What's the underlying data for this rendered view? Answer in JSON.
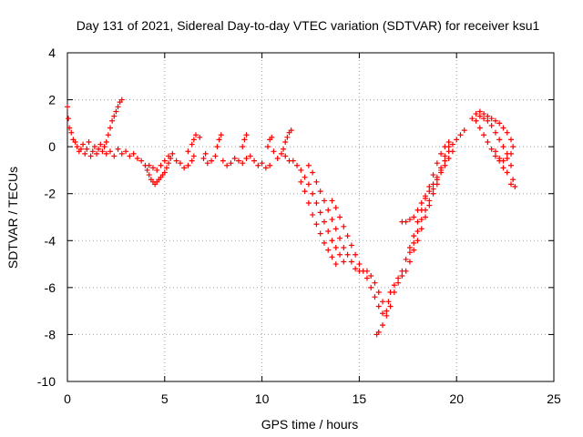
{
  "chart_data": {
    "type": "scatter",
    "title": "Day 131 of 2021, Sidereal Day-to-day VTEC variation (SDTVAR) for receiver ksu1",
    "xlabel": "GPS time / hours",
    "ylabel": "SDTVAR / TECUs",
    "xlim": [
      0,
      25
    ],
    "ylim": [
      -10,
      4
    ],
    "xticks": [
      0,
      5,
      10,
      15,
      20,
      25
    ],
    "yticks": [
      -10,
      -8,
      -6,
      -4,
      -2,
      0,
      2,
      4
    ],
    "xtick_labels": [
      "0",
      "5",
      "10",
      "15",
      "20",
      "25"
    ],
    "ytick_labels": [
      "-10",
      "-8",
      "-6",
      "-4",
      "-2",
      "0",
      "2",
      "4"
    ],
    "grid": true,
    "marker": "+",
    "series": [
      {
        "name": "SDTVAR",
        "color": "#ff0000",
        "points": [
          [
            0.0,
            1.7
          ],
          [
            0.05,
            1.2
          ],
          [
            0.1,
            0.8
          ],
          [
            0.2,
            0.6
          ],
          [
            0.3,
            0.3
          ],
          [
            0.4,
            0.2
          ],
          [
            0.5,
            0.0
          ],
          [
            0.6,
            -0.2
          ],
          [
            0.7,
            -0.1
          ],
          [
            0.8,
            0.1
          ],
          [
            0.9,
            -0.3
          ],
          [
            1.0,
            -0.1
          ],
          [
            1.1,
            0.2
          ],
          [
            1.2,
            -0.4
          ],
          [
            1.3,
            -0.2
          ],
          [
            1.4,
            0.0
          ],
          [
            1.5,
            -0.3
          ],
          [
            1.6,
            -0.1
          ],
          [
            1.7,
            0.1
          ],
          [
            1.8,
            -0.2
          ],
          [
            1.9,
            0.0
          ],
          [
            2.0,
            0.2
          ],
          [
            2.1,
            0.5
          ],
          [
            2.2,
            0.8
          ],
          [
            2.3,
            1.1
          ],
          [
            2.4,
            1.3
          ],
          [
            2.5,
            1.5
          ],
          [
            2.6,
            1.7
          ],
          [
            2.7,
            1.9
          ],
          [
            2.8,
            2.0
          ],
          [
            2.0,
            -0.3
          ],
          [
            2.2,
            -0.2
          ],
          [
            2.4,
            -0.4
          ],
          [
            2.6,
            -0.1
          ],
          [
            2.8,
            -0.3
          ],
          [
            3.0,
            -0.2
          ],
          [
            3.2,
            -0.4
          ],
          [
            3.4,
            -0.3
          ],
          [
            3.6,
            -0.5
          ],
          [
            3.8,
            -0.6
          ],
          [
            4.0,
            -0.8
          ],
          [
            4.1,
            -1.0
          ],
          [
            4.2,
            -1.2
          ],
          [
            4.3,
            -1.4
          ],
          [
            4.4,
            -1.5
          ],
          [
            4.5,
            -1.6
          ],
          [
            4.6,
            -1.5
          ],
          [
            4.7,
            -1.4
          ],
          [
            4.8,
            -1.3
          ],
          [
            4.9,
            -1.2
          ],
          [
            5.0,
            -1.1
          ],
          [
            5.1,
            -0.9
          ],
          [
            5.2,
            -0.7
          ],
          [
            5.3,
            -0.5
          ],
          [
            5.4,
            -0.3
          ],
          [
            4.2,
            -0.8
          ],
          [
            4.4,
            -0.9
          ],
          [
            4.6,
            -1.0
          ],
          [
            4.8,
            -0.8
          ],
          [
            5.0,
            -0.6
          ],
          [
            5.2,
            -0.4
          ],
          [
            5.6,
            -0.6
          ],
          [
            5.8,
            -0.7
          ],
          [
            6.0,
            -0.9
          ],
          [
            6.2,
            -0.8
          ],
          [
            6.4,
            -0.6
          ],
          [
            6.5,
            -0.4
          ],
          [
            6.2,
            -0.2
          ],
          [
            6.4,
            0.1
          ],
          [
            6.5,
            0.3
          ],
          [
            6.6,
            0.5
          ],
          [
            6.8,
            0.4
          ],
          [
            7.0,
            -0.5
          ],
          [
            7.1,
            -0.3
          ],
          [
            7.2,
            -0.7
          ],
          [
            7.4,
            -0.6
          ],
          [
            7.6,
            -0.4
          ],
          [
            7.7,
            0.0
          ],
          [
            7.8,
            0.3
          ],
          [
            7.9,
            0.5
          ],
          [
            8.0,
            -0.6
          ],
          [
            8.2,
            -0.8
          ],
          [
            8.4,
            -0.7
          ],
          [
            8.6,
            -0.5
          ],
          [
            8.8,
            -0.6
          ],
          [
            9.0,
            -0.7
          ],
          [
            9.2,
            -0.5
          ],
          [
            9.4,
            -0.4
          ],
          [
            9.6,
            -0.6
          ],
          [
            9.8,
            -0.8
          ],
          [
            10.0,
            -0.7
          ],
          [
            10.2,
            -0.9
          ],
          [
            10.4,
            -0.8
          ],
          [
            9.0,
            0.0
          ],
          [
            9.1,
            0.3
          ],
          [
            9.2,
            0.5
          ],
          [
            10.3,
            0.0
          ],
          [
            10.4,
            0.3
          ],
          [
            10.5,
            0.4
          ],
          [
            10.6,
            -0.2
          ],
          [
            10.8,
            -0.5
          ],
          [
            11.0,
            -0.3
          ],
          [
            11.1,
            -0.1
          ],
          [
            11.2,
            0.2
          ],
          [
            11.3,
            0.4
          ],
          [
            11.4,
            0.6
          ],
          [
            11.5,
            0.7
          ],
          [
            11.2,
            -0.4
          ],
          [
            11.4,
            -0.6
          ],
          [
            11.6,
            -0.6
          ],
          [
            11.8,
            -0.8
          ],
          [
            12.0,
            -1.0
          ],
          [
            12.2,
            -1.3
          ],
          [
            12.4,
            -1.6
          ],
          [
            12.6,
            -2.0
          ],
          [
            12.8,
            -2.4
          ],
          [
            13.0,
            -2.8
          ],
          [
            13.2,
            -3.2
          ],
          [
            13.4,
            -3.6
          ],
          [
            13.6,
            -4.0
          ],
          [
            13.8,
            -4.3
          ],
          [
            14.0,
            -4.6
          ],
          [
            14.2,
            -4.9
          ],
          [
            12.4,
            -0.8
          ],
          [
            12.6,
            -1.1
          ],
          [
            12.8,
            -1.5
          ],
          [
            13.0,
            -1.9
          ],
          [
            13.2,
            -2.3
          ],
          [
            13.4,
            -2.7
          ],
          [
            13.6,
            -3.1
          ],
          [
            13.8,
            -3.5
          ],
          [
            14.0,
            -3.9
          ],
          [
            14.2,
            -4.3
          ],
          [
            14.4,
            -4.6
          ],
          [
            14.6,
            -4.9
          ],
          [
            14.8,
            -5.2
          ],
          [
            15.0,
            -5.3
          ],
          [
            12.0,
            -1.5
          ],
          [
            12.2,
            -1.9
          ],
          [
            12.4,
            -2.4
          ],
          [
            12.6,
            -2.9
          ],
          [
            12.8,
            -3.3
          ],
          [
            13.0,
            -3.7
          ],
          [
            13.2,
            -4.1
          ],
          [
            13.4,
            -4.4
          ],
          [
            13.6,
            -4.7
          ],
          [
            13.8,
            -5.0
          ],
          [
            13.6,
            -2.3
          ],
          [
            13.8,
            -2.6
          ],
          [
            14.0,
            -3.0
          ],
          [
            14.2,
            -3.4
          ],
          [
            14.4,
            -3.8
          ],
          [
            14.6,
            -4.2
          ],
          [
            14.8,
            -4.6
          ],
          [
            15.0,
            -5.0
          ],
          [
            15.2,
            -5.3
          ],
          [
            15.4,
            -5.6
          ],
          [
            15.6,
            -6.0
          ],
          [
            15.8,
            -6.4
          ],
          [
            16.0,
            -6.8
          ],
          [
            16.2,
            -7.1
          ],
          [
            15.4,
            -5.3
          ],
          [
            15.6,
            -5.5
          ],
          [
            15.8,
            -5.8
          ],
          [
            16.0,
            -6.2
          ],
          [
            16.2,
            -6.6
          ],
          [
            16.4,
            -7.0
          ],
          [
            15.9,
            -8.0
          ],
          [
            16.0,
            -7.9
          ],
          [
            16.2,
            -7.6
          ],
          [
            16.4,
            -7.2
          ],
          [
            16.5,
            -6.6
          ],
          [
            16.6,
            -6.2
          ],
          [
            16.8,
            -5.9
          ],
          [
            17.0,
            -5.6
          ],
          [
            17.2,
            -5.3
          ],
          [
            17.4,
            -4.8
          ],
          [
            17.6,
            -4.3
          ],
          [
            17.8,
            -3.8
          ],
          [
            18.0,
            -3.2
          ],
          [
            18.2,
            -2.7
          ],
          [
            18.4,
            -2.2
          ],
          [
            18.6,
            -1.7
          ],
          [
            18.8,
            -1.2
          ],
          [
            19.0,
            -0.7
          ],
          [
            19.2,
            -0.3
          ],
          [
            19.4,
            0.0
          ],
          [
            19.6,
            0.2
          ],
          [
            16.6,
            -6.8
          ],
          [
            16.8,
            -6.2
          ],
          [
            17.0,
            -5.8
          ],
          [
            17.2,
            -5.5
          ],
          [
            17.4,
            -5.3
          ],
          [
            17.6,
            -4.9
          ],
          [
            17.8,
            -4.4
          ],
          [
            18.0,
            -4.0
          ],
          [
            18.2,
            -3.5
          ],
          [
            18.4,
            -3.0
          ],
          [
            18.6,
            -2.5
          ],
          [
            18.8,
            -2.0
          ],
          [
            19.0,
            -1.6
          ],
          [
            19.2,
            -1.1
          ],
          [
            19.4,
            -0.6
          ],
          [
            19.6,
            -0.2
          ],
          [
            19.8,
            0.1
          ],
          [
            20.0,
            0.3
          ],
          [
            20.2,
            0.5
          ],
          [
            20.4,
            0.7
          ],
          [
            17.2,
            -3.2
          ],
          [
            17.4,
            -3.2
          ],
          [
            17.6,
            -3.1
          ],
          [
            17.8,
            -3.0
          ],
          [
            18.0,
            -2.7
          ],
          [
            18.2,
            -2.4
          ],
          [
            18.4,
            -2.1
          ],
          [
            18.6,
            -1.9
          ],
          [
            18.8,
            -1.6
          ],
          [
            19.0,
            -1.3
          ],
          [
            19.2,
            -1.0
          ],
          [
            19.4,
            -0.8
          ],
          [
            19.6,
            -0.5
          ],
          [
            19.8,
            -0.2
          ],
          [
            17.6,
            -4.5
          ],
          [
            17.8,
            -4.1
          ],
          [
            18.0,
            -3.6
          ],
          [
            18.2,
            -3.1
          ],
          [
            18.4,
            -2.7
          ],
          [
            18.6,
            -2.3
          ],
          [
            18.8,
            -1.8
          ],
          [
            19.0,
            -1.4
          ],
          [
            19.2,
            -0.9
          ],
          [
            19.4,
            -0.4
          ],
          [
            19.6,
            0.0
          ],
          [
            20.8,
            1.2
          ],
          [
            21.0,
            1.4
          ],
          [
            21.2,
            1.3
          ],
          [
            21.4,
            1.2
          ],
          [
            21.6,
            1.1
          ],
          [
            21.8,
            0.9
          ],
          [
            22.0,
            0.6
          ],
          [
            22.2,
            0.3
          ],
          [
            22.4,
            0.0
          ],
          [
            22.6,
            -0.3
          ],
          [
            22.8,
            -0.8
          ],
          [
            22.9,
            -1.4
          ],
          [
            23.0,
            -1.7
          ],
          [
            21.0,
            1.1
          ],
          [
            21.2,
            0.8
          ],
          [
            21.4,
            0.5
          ],
          [
            21.6,
            0.2
          ],
          [
            21.8,
            -0.1
          ],
          [
            22.0,
            -0.4
          ],
          [
            22.2,
            -0.6
          ],
          [
            22.4,
            -0.9
          ],
          [
            22.6,
            -1.1
          ],
          [
            22.8,
            -1.6
          ],
          [
            21.2,
            1.5
          ],
          [
            21.4,
            1.4
          ],
          [
            21.6,
            1.3
          ],
          [
            21.8,
            1.2
          ],
          [
            22.0,
            1.1
          ],
          [
            22.2,
            1.0
          ],
          [
            22.4,
            0.8
          ],
          [
            22.6,
            0.6
          ],
          [
            22.8,
            0.3
          ],
          [
            22.9,
            0.0
          ],
          [
            22.8,
            -0.3
          ],
          [
            22.6,
            -0.5
          ],
          [
            22.4,
            -0.6
          ],
          [
            22.2,
            -0.5
          ],
          [
            22.0,
            -0.2
          ]
        ]
      }
    ]
  }
}
